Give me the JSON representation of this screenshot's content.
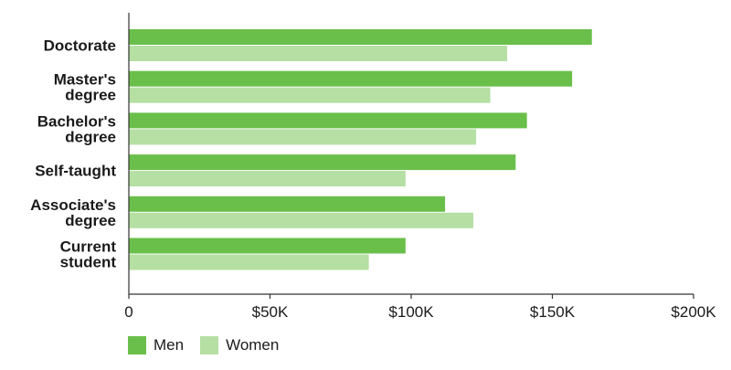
{
  "chart_data": {
    "type": "bar",
    "orientation": "horizontal",
    "categories": [
      [
        "Doctorate"
      ],
      [
        "Master's",
        "degree"
      ],
      [
        "Bachelor's",
        "degree"
      ],
      [
        "Self-taught"
      ],
      [
        "Associate's",
        "degree"
      ],
      [
        "Current",
        "student"
      ]
    ],
    "series": [
      {
        "name": "Men",
        "color": "#6abf4b",
        "values": [
          164000,
          157000,
          141000,
          137000,
          112000,
          98000
        ]
      },
      {
        "name": "Women",
        "color": "#b5dfa3",
        "values": [
          134000,
          128000,
          123000,
          98000,
          122000,
          85000
        ]
      }
    ],
    "xlim": [
      0,
      200000
    ],
    "xticks": [
      {
        "value": 0,
        "label": "0"
      },
      {
        "value": 50000,
        "label": "$50K"
      },
      {
        "value": 100000,
        "label": "$100K"
      },
      {
        "value": 150000,
        "label": "$150K"
      },
      {
        "value": 200000,
        "label": "$200K"
      }
    ],
    "grid": false,
    "legend_position": "bottom-left"
  }
}
